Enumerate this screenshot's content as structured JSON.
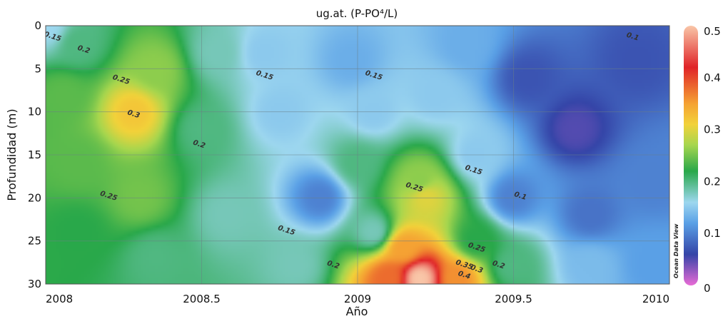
{
  "chart_data": {
    "type": "heatmap",
    "title": "ug.at. (P-PO⁴/L)",
    "xlabel": "Año",
    "ylabel": "Profundidad (m)",
    "xlim": [
      2008,
      2010
    ],
    "ylim": [
      30,
      0
    ],
    "x_ticks": [
      "2008",
      "2008.5",
      "2009",
      "2009.5",
      "2010"
    ],
    "y_ticks": [
      "0",
      "5",
      "10",
      "15",
      "20",
      "25",
      "30"
    ],
    "colorbar": {
      "ticks": [
        "0.5",
        "0.4",
        "0.3",
        "0.2",
        "0.1",
        "0"
      ],
      "range": [
        0,
        0.5
      ]
    },
    "grid": true,
    "watermark": "Ocean Data View",
    "field": [
      {
        "x": 2008.0,
        "depth": 0,
        "value": 0.16
      },
      {
        "x": 2008.1,
        "depth": 2,
        "value": 0.2
      },
      {
        "x": 2008.05,
        "depth": 8,
        "value": 0.24
      },
      {
        "x": 2008.28,
        "depth": 10,
        "value": 0.32
      },
      {
        "x": 2008.35,
        "depth": 5,
        "value": 0.26
      },
      {
        "x": 2008.1,
        "depth": 16,
        "value": 0.24
      },
      {
        "x": 2008.1,
        "depth": 24,
        "value": 0.22
      },
      {
        "x": 2008.3,
        "depth": 20,
        "value": 0.25
      },
      {
        "x": 2008.35,
        "depth": 27,
        "value": 0.2
      },
      {
        "x": 2008.55,
        "depth": 3,
        "value": 0.18
      },
      {
        "x": 2008.5,
        "depth": 12,
        "value": 0.2
      },
      {
        "x": 2008.58,
        "depth": 22,
        "value": 0.18
      },
      {
        "x": 2008.7,
        "depth": 3,
        "value": 0.15
      },
      {
        "x": 2008.75,
        "depth": 10,
        "value": 0.15
      },
      {
        "x": 2008.88,
        "depth": 20,
        "value": 0.1
      },
      {
        "x": 2008.8,
        "depth": 28,
        "value": 0.18
      },
      {
        "x": 2008.98,
        "depth": 4,
        "value": 0.13
      },
      {
        "x": 2009.05,
        "depth": 10,
        "value": 0.15
      },
      {
        "x": 2009.0,
        "depth": 16,
        "value": 0.2
      },
      {
        "x": 2009.05,
        "depth": 24,
        "value": 0.18
      },
      {
        "x": 2009.2,
        "depth": 18,
        "value": 0.26
      },
      {
        "x": 2009.22,
        "depth": 20,
        "value": 0.3
      },
      {
        "x": 2009.15,
        "depth": 26,
        "value": 0.35
      },
      {
        "x": 2009.2,
        "depth": 29.5,
        "value": 0.5
      },
      {
        "x": 2009.1,
        "depth": 29.5,
        "value": 0.38
      },
      {
        "x": 2009.32,
        "depth": 29.5,
        "value": 0.36
      },
      {
        "x": 2009.25,
        "depth": 8,
        "value": 0.15
      },
      {
        "x": 2009.35,
        "depth": 2,
        "value": 0.13
      },
      {
        "x": 2009.38,
        "depth": 15,
        "value": 0.15
      },
      {
        "x": 2009.38,
        "depth": 25,
        "value": 0.22
      },
      {
        "x": 2009.5,
        "depth": 28,
        "value": 0.2
      },
      {
        "x": 2009.5,
        "depth": 20,
        "value": 0.1
      },
      {
        "x": 2009.55,
        "depth": 6,
        "value": 0.07
      },
      {
        "x": 2009.7,
        "depth": 12,
        "value": 0.05
      },
      {
        "x": 2009.75,
        "depth": 22,
        "value": 0.09
      },
      {
        "x": 2009.9,
        "depth": 4,
        "value": 0.07
      },
      {
        "x": 2009.95,
        "depth": 18,
        "value": 0.1
      },
      {
        "x": 2009.75,
        "depth": 28,
        "value": 0.14
      },
      {
        "x": 2009.95,
        "depth": 28,
        "value": 0.12
      }
    ],
    "contour_labels": [
      {
        "text": "0.15",
        "x": 2008.02,
        "depth": 1.5
      },
      {
        "text": "0.2",
        "x": 2008.12,
        "depth": 3
      },
      {
        "text": "0.25",
        "x": 2008.24,
        "depth": 6.5
      },
      {
        "text": "0.3",
        "x": 2008.28,
        "depth": 10.5
      },
      {
        "text": "0.25",
        "x": 2008.2,
        "depth": 20
      },
      {
        "text": "0.2",
        "x": 2008.49,
        "depth": 14
      },
      {
        "text": "0.15",
        "x": 2008.7,
        "depth": 6
      },
      {
        "text": "0.15",
        "x": 2009.05,
        "depth": 6
      },
      {
        "text": "0.15",
        "x": 2008.77,
        "depth": 24
      },
      {
        "text": "0.2",
        "x": 2008.92,
        "depth": 28
      },
      {
        "text": "0.25",
        "x": 2009.18,
        "depth": 19
      },
      {
        "text": "0.15",
        "x": 2009.37,
        "depth": 17
      },
      {
        "text": "0.1",
        "x": 2009.52,
        "depth": 20
      },
      {
        "text": "0.1",
        "x": 2009.88,
        "depth": 1.5
      },
      {
        "text": "0.25",
        "x": 2009.38,
        "depth": 26
      },
      {
        "text": "0.3",
        "x": 2009.38,
        "depth": 28.5
      },
      {
        "text": "0.35",
        "x": 2009.34,
        "depth": 28
      },
      {
        "text": "0.4",
        "x": 2009.34,
        "depth": 29.2
      },
      {
        "text": "0.2",
        "x": 2009.45,
        "depth": 28
      }
    ]
  },
  "colors": {
    "scale": [
      "#e86bd6",
      "#3545a8",
      "#5aa0e6",
      "#9dd7ef",
      "#29a84a",
      "#a6d64e",
      "#f2d23a",
      "#f5a233",
      "#e02428",
      "#f9c6a8"
    ]
  }
}
